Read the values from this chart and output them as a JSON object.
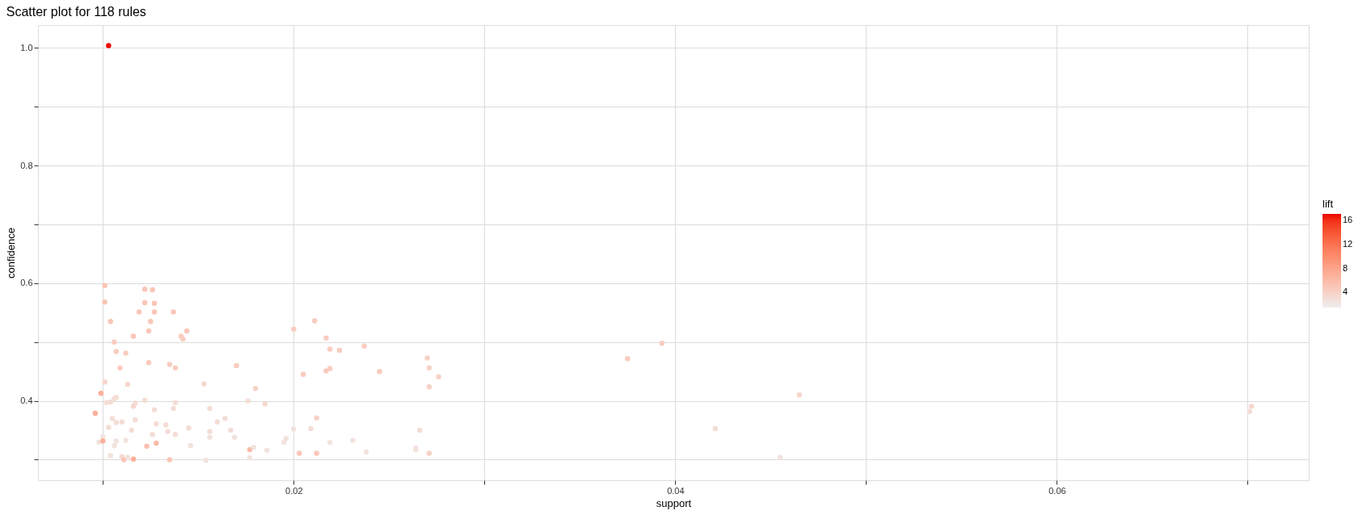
{
  "chart_data": {
    "type": "scatter",
    "title": "Scatter plot for 118 rules",
    "xlabel": "support",
    "ylabel": "confidence",
    "legend_title": "lift",
    "x": [
      0.0101,
      0.0101,
      0.0122,
      0.0126,
      0.0122,
      0.0127,
      0.0119,
      0.0127,
      0.0137,
      0.0104,
      0.0125,
      0.0124,
      0.0144,
      0.0116,
      0.0141,
      0.0142,
      0.0106,
      0.0107,
      0.0112,
      0.0124,
      0.0135,
      0.0138,
      0.017,
      0.0109,
      0.0101,
      0.0113,
      0.0153,
      0.018,
      0.0099,
      0.0107,
      0.0106,
      0.0102,
      0.0104,
      0.0117,
      0.0116,
      0.0122,
      0.0176,
      0.0138,
      0.0127,
      0.0137,
      0.0156,
      0.0185,
      0.0096,
      0.0105,
      0.0117,
      0.0107,
      0.011,
      0.0164,
      0.016,
      0.0128,
      0.0133,
      0.0103,
      0.0145,
      0.0115,
      0.0134,
      0.0167,
      0.0156,
      0.0126,
      0.0138,
      0.01,
      0.0156,
      0.0169,
      0.0098,
      0.01,
      0.0107,
      0.0112,
      0.0106,
      0.0123,
      0.0128,
      0.0146,
      0.0177,
      0.0179,
      0.0186,
      0.0104,
      0.011,
      0.0111,
      0.0113,
      0.0116,
      0.0135,
      0.0154,
      0.0177,
      0.02,
      0.0211,
      0.0217,
      0.0219,
      0.0224,
      0.0237,
      0.0205,
      0.0217,
      0.0219,
      0.0245,
      0.027,
      0.0271,
      0.0276,
      0.0271,
      0.0212,
      0.02,
      0.0209,
      0.0196,
      0.0195,
      0.0266,
      0.0219,
      0.0231,
      0.0203,
      0.0212,
      0.0238,
      0.0264,
      0.0264,
      0.0271,
      0.0375,
      0.0393,
      0.0465,
      0.0421,
      0.0455,
      0.0701,
      0.0702,
      0.0103
    ],
    "values": [
      0.596,
      0.568,
      0.59,
      0.589,
      0.567,
      0.566,
      0.551,
      0.551,
      0.551,
      0.535,
      0.535,
      0.519,
      0.519,
      0.51,
      0.51,
      0.505,
      0.5,
      0.484,
      0.481,
      0.465,
      0.462,
      0.456,
      0.46,
      0.456,
      0.432,
      0.428,
      0.429,
      0.421,
      0.413,
      0.406,
      0.404,
      0.397,
      0.398,
      0.396,
      0.391,
      0.401,
      0.4,
      0.397,
      0.385,
      0.387,
      0.387,
      0.395,
      0.379,
      0.37,
      0.368,
      0.363,
      0.364,
      0.37,
      0.364,
      0.361,
      0.359,
      0.355,
      0.354,
      0.35,
      0.348,
      0.35,
      0.348,
      0.343,
      0.343,
      0.339,
      0.338,
      0.338,
      0.33,
      0.332,
      0.332,
      0.333,
      0.324,
      0.323,
      0.328,
      0.324,
      0.317,
      0.321,
      0.316,
      0.307,
      0.305,
      0.3,
      0.304,
      0.301,
      0.3,
      0.299,
      0.303,
      0.522,
      0.536,
      0.507,
      0.488,
      0.486,
      0.493,
      0.445,
      0.451,
      0.455,
      0.45,
      0.473,
      0.456,
      0.441,
      0.424,
      0.371,
      0.352,
      0.353,
      0.336,
      0.33,
      0.35,
      0.329,
      0.333,
      0.311,
      0.311,
      0.313,
      0.32,
      0.317,
      0.311,
      0.472,
      0.498,
      0.41,
      0.353,
      0.304,
      0.382,
      0.391,
      1.004
    ],
    "cvalues": [
      5,
      5,
      5,
      5,
      5,
      5,
      5,
      5,
      5,
      5,
      5,
      5,
      5,
      5,
      4.5,
      4.5,
      4.5,
      4.5,
      4.5,
      4.5,
      4.5,
      4.5,
      4.5,
      4.5,
      3.5,
      3.5,
      3.5,
      4,
      7,
      3,
      3,
      3,
      3,
      3,
      3.5,
      3,
      3,
      3,
      3,
      3,
      3,
      3.5,
      7,
      3,
      3,
      3,
      3,
      3,
      3,
      3,
      3,
      3,
      3,
      3,
      3,
      3,
      3,
      3,
      3,
      2.5,
      2.5,
      2.5,
      2.5,
      7,
      2.5,
      2.5,
      2.5,
      5.5,
      6,
      2.5,
      6,
      2.5,
      2.5,
      2.5,
      3,
      5,
      2.5,
      7,
      5,
      2.5,
      2.5,
      4.5,
      4.5,
      4.5,
      4.5,
      4.5,
      4.5,
      4.5,
      4.5,
      4.5,
      4.5,
      4,
      4,
      4,
      4,
      4,
      2.5,
      3,
      2.5,
      2.5,
      3,
      2.5,
      2.5,
      5,
      5,
      2.5,
      2.5,
      2.5,
      4,
      4.5,
      4.5,
      3.5,
      3,
      2.5,
      3,
      3.5,
      17
    ],
    "clim": [
      1.5,
      17.1
    ],
    "cticks": [
      4,
      8,
      12,
      16
    ],
    "xlim": [
      0.0066,
      0.0732
    ],
    "ylim": [
      0.265,
      1.039
    ],
    "xticks": [
      {
        "value": 0.01,
        "label": null
      },
      0.02,
      {
        "value": 0.03,
        "label": null
      },
      0.04,
      {
        "value": 0.05,
        "label": null
      },
      0.06,
      {
        "value": 0.07,
        "label": null
      }
    ],
    "yticks": [
      {
        "value": 0.3,
        "label": null
      },
      0.4,
      {
        "value": 0.5,
        "label": null
      },
      0.6,
      {
        "value": 0.7,
        "label": null
      },
      0.8,
      {
        "value": 0.9,
        "label": null
      },
      {
        "value": 1.0,
        "label": "1.0"
      }
    ],
    "grid": true
  }
}
